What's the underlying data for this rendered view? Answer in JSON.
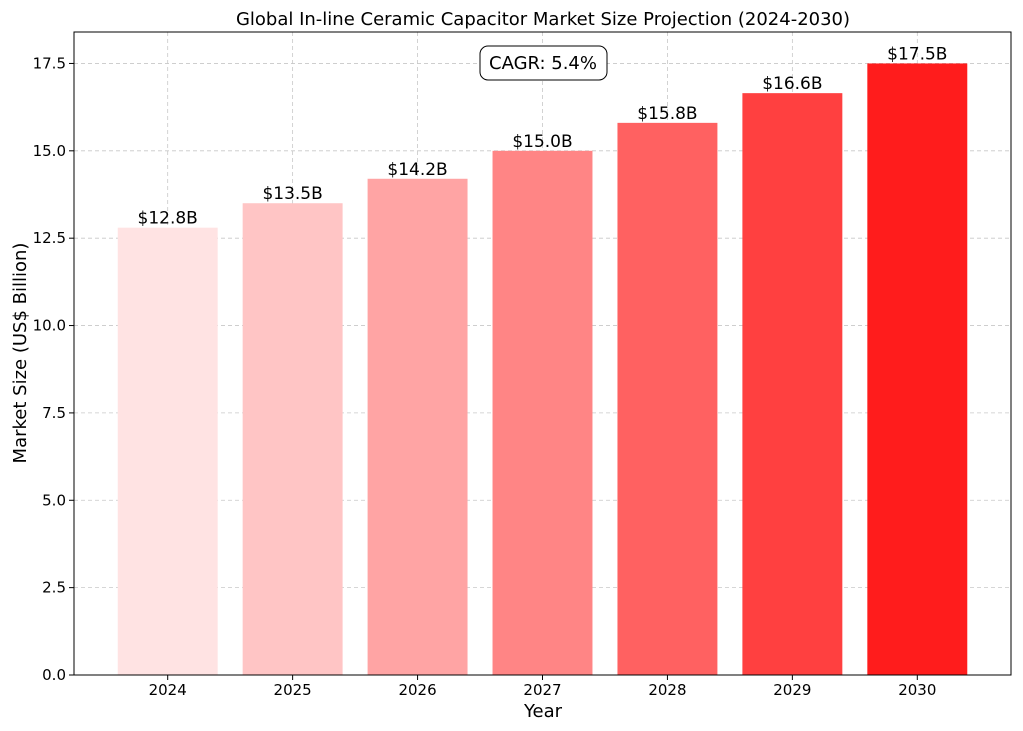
{
  "chart_data": {
    "type": "bar",
    "title": "Global In-line Ceramic Capacitor Market Size Projection (2024-2030)",
    "xlabel": "Year",
    "ylabel": "Market Size (US$ Billion)",
    "categories": [
      "2024",
      "2025",
      "2026",
      "2027",
      "2028",
      "2029",
      "2030"
    ],
    "values": [
      12.8,
      13.5,
      14.2,
      15.0,
      15.8,
      16.65,
      17.5
    ],
    "data_labels": [
      "$12.8B",
      "$13.5B",
      "$14.2B",
      "$15.0B",
      "$15.8B",
      "$16.6B",
      "$17.5B"
    ],
    "bar_colors": [
      "#ffe3e3",
      "#ffc5c5",
      "#ffa4a4",
      "#ff8585",
      "#ff6161",
      "#ff4040",
      "#ff1c1c"
    ],
    "ylim": [
      0,
      18.4
    ],
    "yticks": [
      0.0,
      2.5,
      5.0,
      7.5,
      10.0,
      12.5,
      15.0,
      17.5
    ],
    "ytick_labels": [
      "0.0",
      "2.5",
      "5.0",
      "7.5",
      "10.0",
      "12.5",
      "15.0",
      "17.5"
    ],
    "grid": true,
    "annotation": "CAGR: 5.4%"
  }
}
